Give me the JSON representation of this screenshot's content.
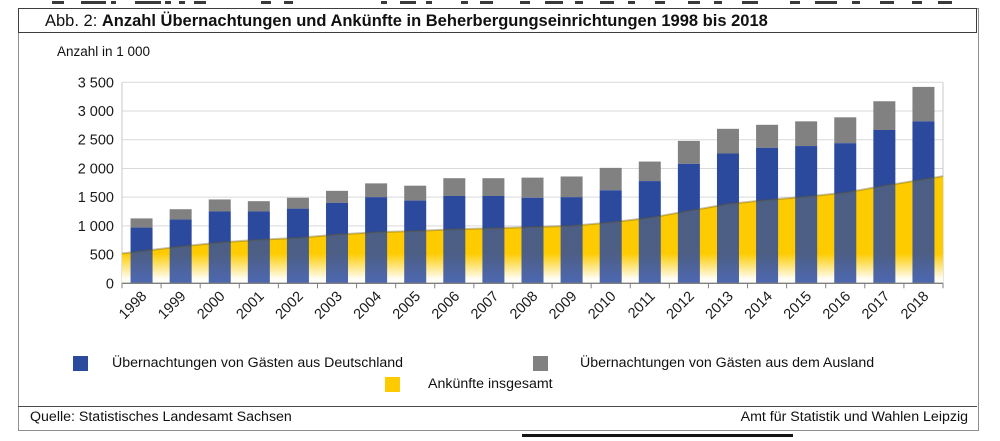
{
  "page": {
    "title_prefix": "Abb. 2:",
    "title_main": "Anzahl Übernachtungen und Ankünfte in Beherbergungseinrichtungen 1998 bis 2018"
  },
  "chart_data": {
    "type": "bar",
    "subtype": "stacked-columns-with-area-overlay",
    "title": "Abb. 2: Anzahl Übernachtungen und Ankünfte in Beherbergungseinrichtungen 1998 bis 2018",
    "unit_label": "Anzahl in 1 000",
    "categories": [
      "1998",
      "1999",
      "2000",
      "2001",
      "2002",
      "2003",
      "2004",
      "2005",
      "2006",
      "2007",
      "2008",
      "2009",
      "2010",
      "2011",
      "2012",
      "2013",
      "2014",
      "2015",
      "2016",
      "2017",
      "2018"
    ],
    "series": [
      {
        "name": "Übernachtungen von Gästen aus Deutschland",
        "render": "bar-stack-bottom",
        "color": "#2B4A9E",
        "values": [
          970,
          1110,
          1250,
          1250,
          1300,
          1400,
          1500,
          1440,
          1520,
          1520,
          1490,
          1500,
          1620,
          1780,
          2080,
          2260,
          2360,
          2390,
          2440,
          2670,
          2820
        ]
      },
      {
        "name": "Übernachtungen von Gästen aus dem Ausland",
        "render": "bar-stack-top",
        "color": "#818181",
        "values": [
          160,
          180,
          210,
          180,
          190,
          210,
          240,
          260,
          310,
          310,
          350,
          360,
          390,
          340,
          400,
          430,
          400,
          430,
          450,
          500,
          600
        ]
      },
      {
        "name": "Ankünfte insgesamt",
        "render": "area",
        "color": "#FECB00",
        "values": [
          560,
          640,
          710,
          760,
          790,
          850,
          890,
          910,
          940,
          960,
          980,
          1000,
          1060,
          1140,
          1260,
          1380,
          1450,
          1510,
          1580,
          1700,
          1810
        ]
      }
    ],
    "ylim": [
      0,
      3500
    ],
    "ytick_step": 500,
    "y_tick_labels": [
      "0",
      "500",
      "1 000",
      "1 500",
      "2 000",
      "2 500",
      "3 000",
      "3 500"
    ],
    "grid": true,
    "legend_position": "bottom"
  },
  "footer": {
    "left": "Quelle: Statistisches Landesamt Sachsen",
    "right": "Amt für Statistik und Wahlen Leipzig"
  },
  "colors": {
    "blue": "#2B4A9E",
    "gray": "#818181",
    "yellow": "#FECB00",
    "yellow_fade": "#FFFEF6",
    "grid": "#D9D9D9",
    "axis": "#7F7F7F"
  }
}
